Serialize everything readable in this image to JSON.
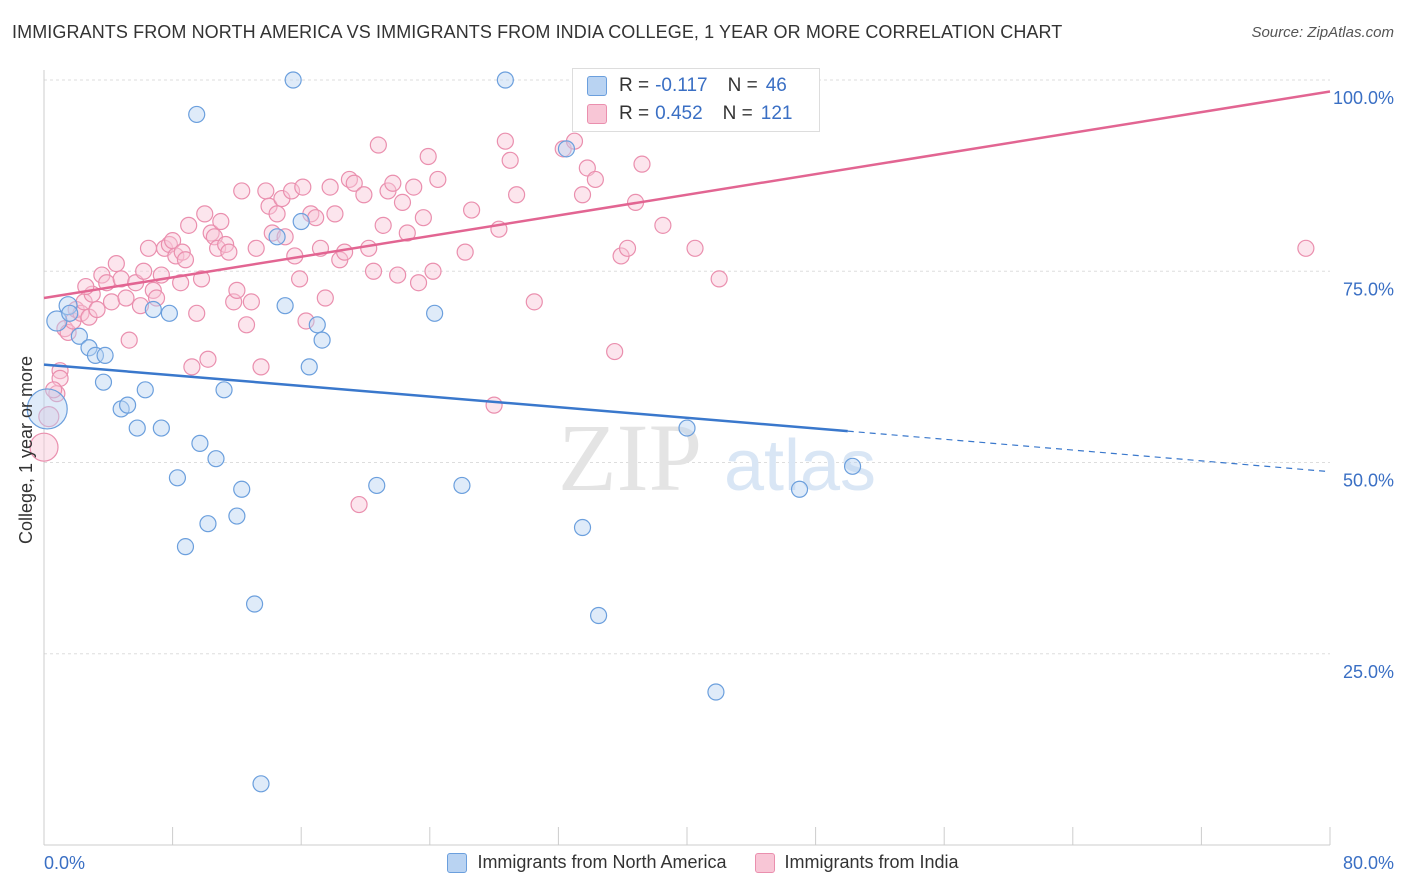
{
  "title": "IMMIGRANTS FROM NORTH AMERICA VS IMMIGRANTS FROM INDIA COLLEGE, 1 YEAR OR MORE CORRELATION CHART",
  "source": "Source: ZipAtlas.com",
  "watermark": {
    "zip": "ZIP",
    "atlas": "atlas"
  },
  "stats": {
    "north_america": {
      "r_label": "R =",
      "r": "-0.117",
      "n_label": "N =",
      "n": "46"
    },
    "india": {
      "r_label": "R =",
      "r": "0.452",
      "n_label": "N =",
      "n": "121"
    }
  },
  "colors": {
    "north_america_fill": "#b9d3f2",
    "north_america_stroke": "#6b9fdd",
    "north_america_line": "#3a78cc",
    "india_fill": "#f8c6d6",
    "india_stroke": "#ea8fae",
    "india_line": "#e26592",
    "tick_label": "#3a6fc4",
    "grid": "#dddddd"
  },
  "chart_data": {
    "type": "scatter",
    "title": "IMMIGRANTS FROM NORTH AMERICA VS IMMIGRANTS FROM INDIA COLLEGE, 1 YEAR OR MORE CORRELATION CHART",
    "xlabel": "",
    "ylabel": "College, 1 year or more",
    "xlim": [
      0,
      80
    ],
    "ylim": [
      0,
      102
    ],
    "x_tick_labels": [
      "0.0%",
      "80.0%"
    ],
    "y_tick_labels": [
      "100.0%",
      "75.0%",
      "50.0%",
      "25.0%"
    ],
    "y_ticks": [
      100,
      75,
      50,
      25
    ],
    "grid": true,
    "legend_position": "bottom",
    "series": [
      {
        "name": "Immigrants from North America",
        "trend": {
          "x_solid": [
            0,
            50
          ],
          "y_solid": [
            62.8,
            54.1
          ],
          "x_dashed": [
            50,
            80
          ],
          "y_dashed": [
            54.1,
            48.8
          ]
        },
        "points": [
          [
            0.2,
            57.0,
            20
          ],
          [
            0.8,
            68.5,
            10
          ],
          [
            1.5,
            70.5,
            9
          ],
          [
            1.6,
            69.5,
            8
          ],
          [
            2.2,
            66.5,
            8
          ],
          [
            2.8,
            65.0,
            8
          ],
          [
            3.2,
            64.0,
            8
          ],
          [
            3.8,
            64.0,
            8
          ],
          [
            3.7,
            60.5,
            8
          ],
          [
            4.8,
            57.0,
            8
          ],
          [
            5.2,
            57.5,
            8
          ],
          [
            5.8,
            54.5,
            8
          ],
          [
            6.3,
            59.5,
            8
          ],
          [
            6.8,
            70.0,
            8
          ],
          [
            7.3,
            54.5,
            8
          ],
          [
            7.8,
            69.5,
            8
          ],
          [
            8.3,
            48.0,
            8
          ],
          [
            8.8,
            39.0,
            8
          ],
          [
            9.5,
            95.5,
            8
          ],
          [
            9.7,
            52.5,
            8
          ],
          [
            10.2,
            42.0,
            8
          ],
          [
            10.7,
            50.5,
            8
          ],
          [
            11.2,
            59.5,
            8
          ],
          [
            12.0,
            43.0,
            8
          ],
          [
            12.3,
            46.5,
            8
          ],
          [
            13.1,
            31.5,
            8
          ],
          [
            13.5,
            8.0,
            8
          ],
          [
            14.5,
            79.5,
            8
          ],
          [
            15.0,
            70.5,
            8
          ],
          [
            15.5,
            100.0,
            8
          ],
          [
            16.0,
            81.5,
            8
          ],
          [
            16.5,
            62.5,
            8
          ],
          [
            17.0,
            68.0,
            8
          ],
          [
            17.3,
            66.0,
            8
          ],
          [
            20.7,
            47.0,
            8
          ],
          [
            24.3,
            69.5,
            8
          ],
          [
            26.0,
            47.0,
            8
          ],
          [
            28.7,
            100.0,
            8
          ],
          [
            32.5,
            91.0,
            8
          ],
          [
            33.5,
            41.5,
            8
          ],
          [
            33.8,
            100.0,
            8
          ],
          [
            34.5,
            30.0,
            8
          ],
          [
            40.0,
            54.5,
            8
          ],
          [
            41.8,
            20.0,
            8
          ],
          [
            47.0,
            46.5,
            8
          ],
          [
            50.3,
            49.5,
            8
          ]
        ]
      },
      {
        "name": "Immigrants from India",
        "trend": {
          "x_solid": [
            0,
            80
          ],
          "y_solid": [
            71.5,
            98.5
          ]
        },
        "points": [
          [
            0.0,
            52.0,
            14
          ],
          [
            0.3,
            56.0,
            10
          ],
          [
            0.8,
            59.0,
            8
          ],
          [
            1.0,
            62.0,
            8
          ],
          [
            1.0,
            61.0,
            8
          ],
          [
            1.3,
            67.5,
            8
          ],
          [
            1.5,
            67.0,
            8
          ],
          [
            1.8,
            68.5,
            8
          ],
          [
            2.0,
            70.0,
            8
          ],
          [
            2.3,
            69.5,
            8
          ],
          [
            2.5,
            71.0,
            8
          ],
          [
            2.8,
            69.0,
            8
          ],
          [
            3.0,
            72.0,
            8
          ],
          [
            3.3,
            70.0,
            8
          ],
          [
            3.6,
            74.5,
            8
          ],
          [
            3.9,
            73.5,
            8
          ],
          [
            4.2,
            71.0,
            8
          ],
          [
            4.5,
            76.0,
            8
          ],
          [
            4.8,
            74.0,
            8
          ],
          [
            5.1,
            71.5,
            8
          ],
          [
            5.3,
            66.0,
            8
          ],
          [
            5.7,
            73.5,
            8
          ],
          [
            6.0,
            70.5,
            8
          ],
          [
            6.2,
            75.0,
            8
          ],
          [
            6.5,
            78.0,
            8
          ],
          [
            6.8,
            72.5,
            8
          ],
          [
            7.0,
            71.5,
            8
          ],
          [
            7.3,
            74.5,
            8
          ],
          [
            7.5,
            78.0,
            8
          ],
          [
            7.8,
            78.5,
            8
          ],
          [
            8.0,
            79.0,
            8
          ],
          [
            8.2,
            77.0,
            8
          ],
          [
            8.5,
            73.5,
            8
          ],
          [
            8.6,
            77.5,
            8
          ],
          [
            8.8,
            76.5,
            8
          ],
          [
            9.0,
            81.0,
            8
          ],
          [
            9.2,
            62.5,
            8
          ],
          [
            9.5,
            69.5,
            8
          ],
          [
            9.8,
            74.0,
            8
          ],
          [
            10.0,
            82.5,
            8
          ],
          [
            10.2,
            63.5,
            8
          ],
          [
            10.4,
            80.0,
            8
          ],
          [
            10.6,
            79.5,
            8
          ],
          [
            10.8,
            78.0,
            8
          ],
          [
            11.0,
            81.5,
            8
          ],
          [
            11.3,
            78.5,
            8
          ],
          [
            11.5,
            77.5,
            8
          ],
          [
            11.8,
            71.0,
            8
          ],
          [
            12.0,
            72.5,
            8
          ],
          [
            12.3,
            85.5,
            8
          ],
          [
            12.6,
            68.0,
            8
          ],
          [
            12.9,
            71.0,
            8
          ],
          [
            13.2,
            78.0,
            8
          ],
          [
            13.5,
            62.5,
            8
          ],
          [
            13.8,
            85.5,
            8
          ],
          [
            14.0,
            83.5,
            8
          ],
          [
            14.2,
            80.0,
            8
          ],
          [
            14.5,
            82.5,
            8
          ],
          [
            14.8,
            84.5,
            8
          ],
          [
            15.0,
            79.5,
            8
          ],
          [
            15.4,
            85.5,
            8
          ],
          [
            15.6,
            77.0,
            8
          ],
          [
            15.9,
            74.0,
            8
          ],
          [
            16.1,
            86.0,
            8
          ],
          [
            16.3,
            68.5,
            8
          ],
          [
            16.6,
            82.5,
            8
          ],
          [
            16.9,
            82.0,
            8
          ],
          [
            17.2,
            78.0,
            8
          ],
          [
            17.5,
            71.5,
            8
          ],
          [
            17.8,
            86.0,
            8
          ],
          [
            18.1,
            82.5,
            8
          ],
          [
            18.4,
            76.5,
            8
          ],
          [
            18.7,
            77.5,
            8
          ],
          [
            19.0,
            87.0,
            8
          ],
          [
            19.3,
            86.5,
            8
          ],
          [
            19.6,
            44.5,
            8
          ],
          [
            19.9,
            85.0,
            8
          ],
          [
            20.2,
            78.0,
            8
          ],
          [
            20.5,
            75.0,
            8
          ],
          [
            20.8,
            91.5,
            8
          ],
          [
            21.1,
            81.0,
            8
          ],
          [
            21.4,
            85.5,
            8
          ],
          [
            21.7,
            86.5,
            8
          ],
          [
            22.0,
            74.5,
            8
          ],
          [
            22.3,
            84.0,
            8
          ],
          [
            22.6,
            80.0,
            8
          ],
          [
            23.0,
            86.0,
            8
          ],
          [
            23.3,
            73.5,
            8
          ],
          [
            23.6,
            82.0,
            8
          ],
          [
            23.9,
            90.0,
            8
          ],
          [
            24.2,
            75.0,
            8
          ],
          [
            24.5,
            87.0,
            8
          ],
          [
            26.2,
            77.5,
            8
          ],
          [
            26.6,
            83.0,
            8
          ],
          [
            28.0,
            57.5,
            8
          ],
          [
            28.3,
            80.5,
            8
          ],
          [
            28.7,
            92.0,
            8
          ],
          [
            29.0,
            89.5,
            8
          ],
          [
            29.4,
            85.0,
            8
          ],
          [
            30.5,
            71.0,
            8
          ],
          [
            32.3,
            91.0,
            8
          ],
          [
            33.0,
            92.0,
            8
          ],
          [
            33.5,
            85.0,
            8
          ],
          [
            33.8,
            88.5,
            8
          ],
          [
            34.3,
            87.0,
            8
          ],
          [
            35.5,
            64.5,
            8
          ],
          [
            35.9,
            77.0,
            8
          ],
          [
            36.3,
            78.0,
            8
          ],
          [
            36.8,
            84.0,
            8
          ],
          [
            37.2,
            89.0,
            8
          ],
          [
            38.5,
            81.0,
            8
          ],
          [
            40.5,
            78.0,
            8
          ],
          [
            42.0,
            74.0,
            8
          ],
          [
            78.5,
            78.0,
            8
          ],
          [
            0.6,
            59.5,
            8
          ],
          [
            2.6,
            73.0,
            8
          ]
        ]
      }
    ]
  },
  "legend": {
    "north_america": "Immigrants from North America",
    "india": "Immigrants from India"
  }
}
